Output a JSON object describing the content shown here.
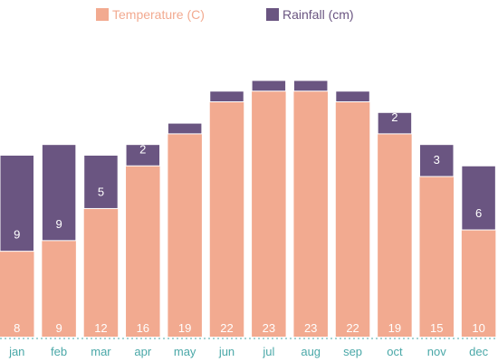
{
  "chart_data": {
    "type": "bar",
    "stacked": true,
    "categories": [
      "jan",
      "feb",
      "mar",
      "apr",
      "may",
      "jun",
      "jul",
      "aug",
      "sep",
      "oct",
      "nov",
      "dec"
    ],
    "series": [
      {
        "name": "Temperature (C)",
        "color": "#f2aa90",
        "values": [
          8,
          9,
          12,
          16,
          19,
          22,
          23,
          23,
          22,
          19,
          15,
          10
        ],
        "labels": [
          "8",
          "9",
          "12",
          "16",
          "19",
          "22",
          "23",
          "23",
          "22",
          "19",
          "15",
          "10"
        ]
      },
      {
        "name": "Rainfall (cm)",
        "color": "#6a5581",
        "values": [
          9,
          9,
          5,
          2,
          1,
          1,
          1,
          1,
          1,
          2,
          3,
          6
        ],
        "labels": [
          "9",
          "9",
          "5",
          "2",
          "",
          "",
          "",
          "",
          "",
          "2",
          "3",
          "6"
        ]
      }
    ],
    "ylim": [
      0,
      24.5
    ],
    "grid": false,
    "legend_position": "top",
    "axis_color": "#4aa8a8"
  }
}
